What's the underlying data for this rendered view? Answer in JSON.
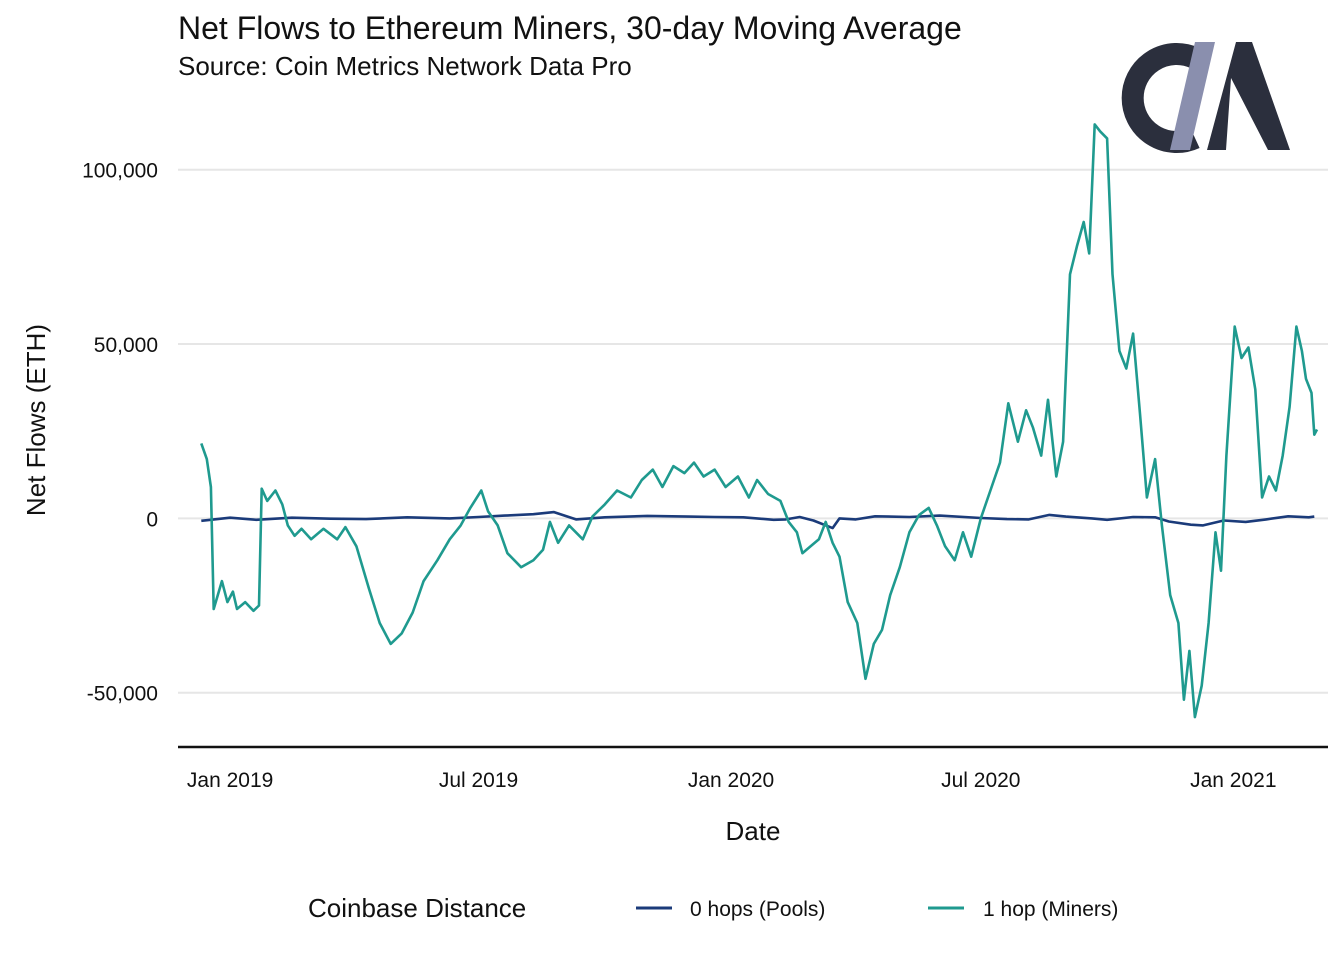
{
  "colors": {
    "pools": "#1b3b7a",
    "miners": "#1f9a8f",
    "logo_dark": "#2b2f3d",
    "logo_light": "#8a8fae",
    "grid": "#e6e6e6"
  },
  "logo_text": "CM",
  "chart_data": {
    "type": "line",
    "title": "Net Flows to Ethereum Miners, 30-day Moving Average",
    "subtitle": "Source: Coin Metrics Network Data Pro",
    "xlabel": "Date",
    "ylabel": "Net Flows (ETH)",
    "ylim": [
      -65000,
      120000
    ],
    "xlim": [
      "2018-11-24",
      "2021-03-11"
    ],
    "x_ticks": [
      {
        "date": "2019-01-01",
        "label": "Jan 2019"
      },
      {
        "date": "2019-07-01",
        "label": "Jul 2019"
      },
      {
        "date": "2020-01-01",
        "label": "Jan 2020"
      },
      {
        "date": "2020-07-01",
        "label": "Jul 2020"
      },
      {
        "date": "2021-01-01",
        "label": "Jan 2021"
      }
    ],
    "y_ticks": [
      {
        "value": -50000,
        "label": "-50,000"
      },
      {
        "value": 0,
        "label": "0"
      },
      {
        "value": 50000,
        "label": "50,000"
      },
      {
        "value": 100000,
        "label": "100,000"
      }
    ],
    "grid": "horizontal",
    "legend": {
      "title": "Coinbase Distance",
      "position": "bottom"
    },
    "series": [
      {
        "name": "0 hops (Pools)",
        "color": "#1b3b7a",
        "points": [
          [
            "2018-12-11",
            -700
          ],
          [
            "2019-01-01",
            200
          ],
          [
            "2019-01-20",
            -400
          ],
          [
            "2019-02-15",
            200
          ],
          [
            "2019-03-15",
            -100
          ],
          [
            "2019-04-10",
            -200
          ],
          [
            "2019-05-10",
            300
          ],
          [
            "2019-06-10",
            0
          ],
          [
            "2019-07-01",
            400
          ],
          [
            "2019-07-20",
            800
          ],
          [
            "2019-08-10",
            1200
          ],
          [
            "2019-08-25",
            1800
          ],
          [
            "2019-09-10",
            -300
          ],
          [
            "2019-10-01",
            300
          ],
          [
            "2019-11-01",
            700
          ],
          [
            "2019-12-01",
            500
          ],
          [
            "2019-12-20",
            400
          ],
          [
            "2020-01-10",
            300
          ],
          [
            "2020-02-01",
            -400
          ],
          [
            "2020-02-10",
            -300
          ],
          [
            "2020-02-20",
            400
          ],
          [
            "2020-03-01",
            -600
          ],
          [
            "2020-03-15",
            -2800
          ],
          [
            "2020-03-20",
            0
          ],
          [
            "2020-04-01",
            -300
          ],
          [
            "2020-04-15",
            600
          ],
          [
            "2020-05-10",
            400
          ],
          [
            "2020-06-01",
            800
          ],
          [
            "2020-07-01",
            100
          ],
          [
            "2020-07-20",
            -200
          ],
          [
            "2020-08-05",
            -300
          ],
          [
            "2020-08-20",
            1000
          ],
          [
            "2020-09-01",
            500
          ],
          [
            "2020-09-20",
            0
          ],
          [
            "2020-10-01",
            -400
          ],
          [
            "2020-10-20",
            400
          ],
          [
            "2020-11-05",
            300
          ],
          [
            "2020-11-15",
            -900
          ],
          [
            "2020-12-01",
            -1800
          ],
          [
            "2020-12-10",
            -2000
          ],
          [
            "2020-12-25",
            -600
          ],
          [
            "2021-01-10",
            -1000
          ],
          [
            "2021-01-25",
            -300
          ],
          [
            "2021-02-10",
            600
          ],
          [
            "2021-02-25",
            300
          ],
          [
            "2021-03-01",
            500
          ]
        ]
      },
      {
        "name": "1 hop (Miners)",
        "color": "#1f9a8f",
        "points": [
          [
            "2018-12-11",
            21500
          ],
          [
            "2018-12-15",
            17000
          ],
          [
            "2018-12-18",
            9000
          ],
          [
            "2018-12-20",
            -26000
          ],
          [
            "2018-12-23",
            -22000
          ],
          [
            "2018-12-26",
            -18000
          ],
          [
            "2018-12-30",
            -24000
          ],
          [
            "2019-01-03",
            -21000
          ],
          [
            "2019-01-06",
            -26000
          ],
          [
            "2019-01-12",
            -24000
          ],
          [
            "2019-01-18",
            -26500
          ],
          [
            "2019-01-22",
            -25000
          ],
          [
            "2019-01-24",
            8500
          ],
          [
            "2019-01-28",
            5000
          ],
          [
            "2019-02-03",
            8000
          ],
          [
            "2019-02-08",
            4000
          ],
          [
            "2019-02-12",
            -2000
          ],
          [
            "2019-02-17",
            -5000
          ],
          [
            "2019-02-22",
            -3000
          ],
          [
            "2019-03-01",
            -6000
          ],
          [
            "2019-03-10",
            -3000
          ],
          [
            "2019-03-20",
            -6000
          ],
          [
            "2019-03-26",
            -2500
          ],
          [
            "2019-04-03",
            -8000
          ],
          [
            "2019-04-12",
            -20000
          ],
          [
            "2019-04-20",
            -30000
          ],
          [
            "2019-04-28",
            -36000
          ],
          [
            "2019-05-06",
            -33000
          ],
          [
            "2019-05-14",
            -27000
          ],
          [
            "2019-05-22",
            -18000
          ],
          [
            "2019-06-01",
            -12000
          ],
          [
            "2019-06-10",
            -6000
          ],
          [
            "2019-06-18",
            -2000
          ],
          [
            "2019-06-25",
            3000
          ],
          [
            "2019-07-03",
            8000
          ],
          [
            "2019-07-08",
            2000
          ],
          [
            "2019-07-15",
            -2000
          ],
          [
            "2019-07-22",
            -10000
          ],
          [
            "2019-08-01",
            -14000
          ],
          [
            "2019-08-10",
            -12000
          ],
          [
            "2019-08-17",
            -9000
          ],
          [
            "2019-08-22",
            -1000
          ],
          [
            "2019-08-28",
            -7000
          ],
          [
            "2019-09-05",
            -2000
          ],
          [
            "2019-09-15",
            -6000
          ],
          [
            "2019-09-22",
            500
          ],
          [
            "2019-10-01",
            4000
          ],
          [
            "2019-10-10",
            8000
          ],
          [
            "2019-10-20",
            6000
          ],
          [
            "2019-10-28",
            11000
          ],
          [
            "2019-11-05",
            14000
          ],
          [
            "2019-11-12",
            9000
          ],
          [
            "2019-11-20",
            15000
          ],
          [
            "2019-11-28",
            13000
          ],
          [
            "2019-12-05",
            16000
          ],
          [
            "2019-12-12",
            12000
          ],
          [
            "2019-12-20",
            14000
          ],
          [
            "2019-12-28",
            9000
          ],
          [
            "2020-01-06",
            12000
          ],
          [
            "2020-01-14",
            6000
          ],
          [
            "2020-01-20",
            11000
          ],
          [
            "2020-01-28",
            7000
          ],
          [
            "2020-02-06",
            5000
          ],
          [
            "2020-02-12",
            -1000
          ],
          [
            "2020-02-18",
            -4000
          ],
          [
            "2020-02-22",
            -10000
          ],
          [
            "2020-02-28",
            -8000
          ],
          [
            "2020-03-05",
            -6000
          ],
          [
            "2020-03-10",
            -1000
          ],
          [
            "2020-03-15",
            -7000
          ],
          [
            "2020-03-20",
            -11000
          ],
          [
            "2020-03-26",
            -24000
          ],
          [
            "2020-04-02",
            -30000
          ],
          [
            "2020-04-08",
            -46000
          ],
          [
            "2020-04-14",
            -36000
          ],
          [
            "2020-04-20",
            -32000
          ],
          [
            "2020-04-26",
            -22000
          ],
          [
            "2020-05-03",
            -14000
          ],
          [
            "2020-05-10",
            -4000
          ],
          [
            "2020-05-17",
            1000
          ],
          [
            "2020-05-24",
            3000
          ],
          [
            "2020-05-30",
            -2000
          ],
          [
            "2020-06-05",
            -8000
          ],
          [
            "2020-06-12",
            -12000
          ],
          [
            "2020-06-18",
            -4000
          ],
          [
            "2020-06-24",
            -11000
          ],
          [
            "2020-07-01",
            0
          ],
          [
            "2020-07-08",
            8000
          ],
          [
            "2020-07-15",
            16000
          ],
          [
            "2020-07-21",
            33000
          ],
          [
            "2020-07-28",
            22000
          ],
          [
            "2020-08-03",
            31000
          ],
          [
            "2020-08-08",
            26000
          ],
          [
            "2020-08-14",
            18000
          ],
          [
            "2020-08-19",
            34000
          ],
          [
            "2020-08-25",
            12000
          ],
          [
            "2020-08-30",
            22000
          ],
          [
            "2020-09-04",
            70000
          ],
          [
            "2020-09-09",
            78000
          ],
          [
            "2020-09-14",
            85000
          ],
          [
            "2020-09-18",
            76000
          ],
          [
            "2020-09-22",
            113000
          ],
          [
            "2020-09-26",
            111000
          ],
          [
            "2020-10-01",
            109000
          ],
          [
            "2020-10-05",
            70000
          ],
          [
            "2020-10-10",
            48000
          ],
          [
            "2020-10-15",
            43000
          ],
          [
            "2020-10-20",
            53000
          ],
          [
            "2020-10-25",
            30000
          ],
          [
            "2020-10-30",
            6000
          ],
          [
            "2020-11-05",
            17000
          ],
          [
            "2020-11-10",
            -2000
          ],
          [
            "2020-11-16",
            -22000
          ],
          [
            "2020-11-22",
            -30000
          ],
          [
            "2020-11-26",
            -52000
          ],
          [
            "2020-11-30",
            -38000
          ],
          [
            "2020-12-04",
            -57000
          ],
          [
            "2020-12-09",
            -48000
          ],
          [
            "2020-12-14",
            -30000
          ],
          [
            "2020-12-19",
            -4000
          ],
          [
            "2020-12-23",
            -15000
          ],
          [
            "2020-12-27",
            18000
          ],
          [
            "2021-01-02",
            55000
          ],
          [
            "2021-01-07",
            46000
          ],
          [
            "2021-01-12",
            49000
          ],
          [
            "2021-01-17",
            37000
          ],
          [
            "2021-01-22",
            6000
          ],
          [
            "2021-01-27",
            12000
          ],
          [
            "2021-02-01",
            8000
          ],
          [
            "2021-02-06",
            18000
          ],
          [
            "2021-02-11",
            32000
          ],
          [
            "2021-02-16",
            55000
          ],
          [
            "2021-02-20",
            48000
          ],
          [
            "2021-02-23",
            40000
          ],
          [
            "2021-02-27",
            36000
          ],
          [
            "2021-03-01",
            24000
          ],
          [
            "2021-03-03",
            25500
          ]
        ]
      }
    ]
  }
}
